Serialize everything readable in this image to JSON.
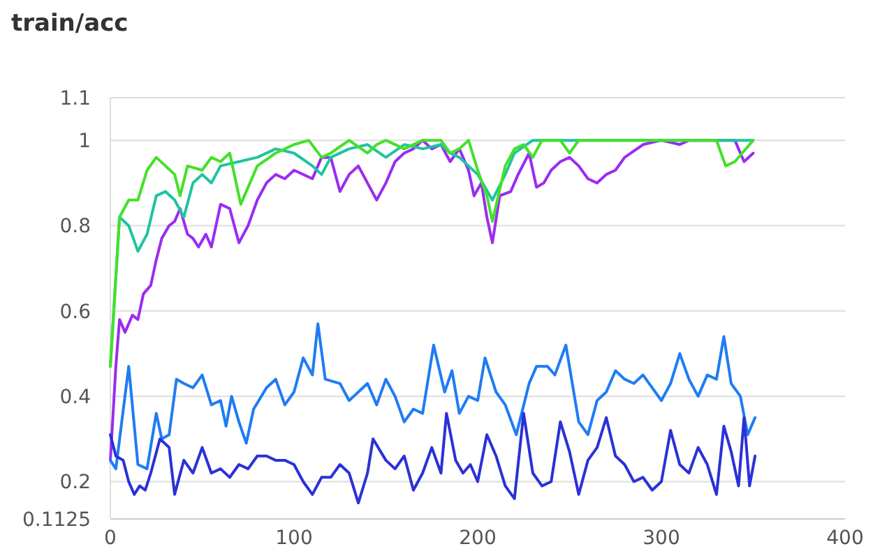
{
  "chart_data": {
    "type": "line",
    "title": "train/acc",
    "xlim": [
      0,
      400
    ],
    "xticks": [
      0,
      100,
      200,
      300,
      400
    ],
    "ylim": [
      0.1125,
      1.1
    ],
    "yticks": [
      0.1125,
      0.2,
      0.4,
      0.6,
      0.8,
      1,
      1.1
    ],
    "grid": "y",
    "marker": "none",
    "line_style": "solid",
    "series": [
      {
        "color": "#9a2cf2",
        "x": [
          0,
          3,
          5,
          8,
          12,
          15,
          18,
          22,
          25,
          28,
          32,
          35,
          38,
          42,
          45,
          48,
          52,
          55,
          60,
          65,
          70,
          75,
          80,
          85,
          90,
          95,
          100,
          110,
          115,
          120,
          125,
          130,
          135,
          140,
          145,
          150,
          155,
          160,
          165,
          170,
          175,
          180,
          185,
          190,
          195,
          198,
          202,
          205,
          208,
          212,
          218,
          222,
          228,
          232,
          236,
          240,
          245,
          250,
          255,
          260,
          265,
          270,
          275,
          280,
          290,
          300,
          310,
          315,
          340,
          345,
          350
        ],
        "values": [
          0.25,
          0.47,
          0.58,
          0.55,
          0.59,
          0.58,
          0.64,
          0.66,
          0.72,
          0.77,
          0.8,
          0.81,
          0.84,
          0.78,
          0.77,
          0.75,
          0.78,
          0.75,
          0.85,
          0.84,
          0.76,
          0.8,
          0.86,
          0.9,
          0.92,
          0.91,
          0.93,
          0.91,
          0.96,
          0.96,
          0.88,
          0.92,
          0.94,
          0.9,
          0.86,
          0.9,
          0.95,
          0.97,
          0.98,
          1,
          0.98,
          0.99,
          0.95,
          0.98,
          0.93,
          0.87,
          0.9,
          0.82,
          0.76,
          0.87,
          0.88,
          0.92,
          0.97,
          0.89,
          0.9,
          0.93,
          0.95,
          0.96,
          0.94,
          0.91,
          0.9,
          0.92,
          0.93,
          0.96,
          0.99,
          1,
          0.99,
          1,
          1,
          0.95,
          0.97
        ]
      },
      {
        "color": "#1fc4a0",
        "x": [
          0,
          5,
          10,
          15,
          20,
          25,
          30,
          35,
          40,
          45,
          50,
          55,
          60,
          70,
          80,
          90,
          100,
          110,
          115,
          120,
          130,
          140,
          150,
          160,
          170,
          180,
          185,
          190,
          200,
          208,
          215,
          220,
          230,
          240,
          260,
          350
        ],
        "values": [
          0.47,
          0.82,
          0.8,
          0.74,
          0.78,
          0.87,
          0.88,
          0.86,
          0.82,
          0.9,
          0.92,
          0.9,
          0.94,
          0.95,
          0.96,
          0.98,
          0.97,
          0.94,
          0.92,
          0.96,
          0.98,
          0.99,
          0.96,
          0.99,
          0.98,
          0.99,
          0.97,
          0.96,
          0.92,
          0.86,
          0.92,
          0.97,
          1,
          1,
          1,
          1
        ]
      },
      {
        "color": "#44e02a",
        "x": [
          0,
          5,
          10,
          15,
          20,
          25,
          30,
          35,
          38,
          42,
          50,
          55,
          60,
          65,
          71,
          80,
          90,
          100,
          108,
          115,
          120,
          130,
          140,
          145,
          150,
          160,
          170,
          180,
          185,
          190,
          195,
          200,
          205,
          208,
          215,
          220,
          225,
          230,
          235,
          245,
          250,
          255,
          270,
          300,
          330,
          335,
          340,
          350
        ],
        "values": [
          0.47,
          0.82,
          0.86,
          0.86,
          0.93,
          0.96,
          0.94,
          0.92,
          0.87,
          0.94,
          0.93,
          0.96,
          0.95,
          0.97,
          0.85,
          0.94,
          0.97,
          0.99,
          1,
          0.96,
          0.97,
          1,
          0.97,
          0.99,
          1,
          0.98,
          1,
          1,
          0.97,
          0.98,
          1,
          0.93,
          0.87,
          0.81,
          0.94,
          0.98,
          0.99,
          0.96,
          1,
          1,
          0.97,
          1,
          1,
          1,
          1,
          0.94,
          0.95,
          1
        ]
      },
      {
        "color": "#1f7cf4",
        "x": [
          0,
          3,
          10,
          15,
          20,
          25,
          28,
          32,
          36,
          40,
          45,
          50,
          55,
          60,
          63,
          66,
          70,
          74,
          78,
          85,
          90,
          95,
          100,
          105,
          110,
          113,
          117,
          125,
          130,
          135,
          140,
          145,
          150,
          155,
          160,
          165,
          170,
          176,
          182,
          186,
          190,
          195,
          200,
          204,
          210,
          215,
          221,
          228,
          232,
          238,
          242,
          248,
          255,
          260,
          265,
          270,
          275,
          280,
          285,
          290,
          295,
          300,
          305,
          310,
          315,
          320,
          325,
          330,
          334,
          338,
          343,
          347,
          351
        ],
        "values": [
          0.25,
          0.23,
          0.47,
          0.24,
          0.23,
          0.36,
          0.3,
          0.31,
          0.44,
          0.43,
          0.42,
          0.45,
          0.38,
          0.39,
          0.33,
          0.4,
          0.34,
          0.29,
          0.37,
          0.42,
          0.44,
          0.38,
          0.41,
          0.49,
          0.45,
          0.57,
          0.44,
          0.43,
          0.39,
          0.41,
          0.43,
          0.38,
          0.44,
          0.4,
          0.34,
          0.37,
          0.36,
          0.52,
          0.41,
          0.46,
          0.36,
          0.4,
          0.39,
          0.49,
          0.41,
          0.38,
          0.31,
          0.43,
          0.47,
          0.47,
          0.45,
          0.52,
          0.34,
          0.31,
          0.39,
          0.41,
          0.46,
          0.44,
          0.43,
          0.45,
          0.42,
          0.39,
          0.43,
          0.5,
          0.44,
          0.4,
          0.45,
          0.44,
          0.54,
          0.43,
          0.4,
          0.31,
          0.35
        ]
      },
      {
        "color": "#2b31d6",
        "x": [
          0,
          3,
          7,
          10,
          13,
          16,
          19,
          22,
          27,
          32,
          35,
          40,
          45,
          50,
          55,
          60,
          65,
          70,
          75,
          80,
          85,
          90,
          95,
          100,
          105,
          110,
          115,
          120,
          125,
          130,
          135,
          140,
          143,
          150,
          155,
          160,
          165,
          170,
          175,
          180,
          183,
          188,
          192,
          196,
          200,
          205,
          210,
          215,
          220,
          225,
          230,
          235,
          240,
          245,
          250,
          255,
          260,
          265,
          270,
          275,
          280,
          285,
          290,
          295,
          300,
          305,
          310,
          315,
          320,
          325,
          330,
          334,
          338,
          342,
          345,
          348,
          351
        ],
        "values": [
          0.31,
          0.26,
          0.25,
          0.2,
          0.17,
          0.19,
          0.18,
          0.22,
          0.3,
          0.28,
          0.17,
          0.25,
          0.22,
          0.28,
          0.22,
          0.23,
          0.21,
          0.24,
          0.23,
          0.26,
          0.26,
          0.25,
          0.25,
          0.24,
          0.2,
          0.17,
          0.21,
          0.21,
          0.24,
          0.22,
          0.15,
          0.22,
          0.3,
          0.25,
          0.23,
          0.26,
          0.18,
          0.22,
          0.28,
          0.22,
          0.36,
          0.25,
          0.22,
          0.24,
          0.2,
          0.31,
          0.26,
          0.19,
          0.16,
          0.36,
          0.22,
          0.19,
          0.2,
          0.34,
          0.27,
          0.17,
          0.25,
          0.28,
          0.35,
          0.26,
          0.24,
          0.2,
          0.21,
          0.18,
          0.2,
          0.32,
          0.24,
          0.22,
          0.28,
          0.24,
          0.17,
          0.33,
          0.27,
          0.19,
          0.35,
          0.19,
          0.26
        ]
      }
    ]
  }
}
